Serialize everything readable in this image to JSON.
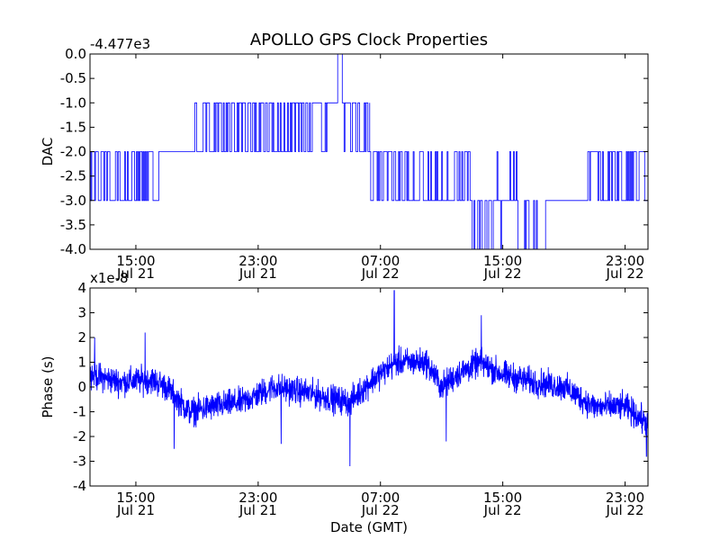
{
  "chart_data": {
    "type": "line",
    "title": "APOLLO GPS Clock Properties",
    "x_range_hours": [
      12.0,
      48.5
    ],
    "x_ticks": [
      {
        "hour": 15,
        "time": "15:00",
        "date": "Jul 21"
      },
      {
        "hour": 23,
        "time": "23:00",
        "date": "Jul 21"
      },
      {
        "hour": 31,
        "time": "07:00",
        "date": "Jul 22"
      },
      {
        "hour": 39,
        "time": "15:00",
        "date": "Jul 22"
      },
      {
        "hour": 47,
        "time": "23:00",
        "date": "Jul 22"
      }
    ],
    "xlabel": "Date (GMT)",
    "line_color": "#0000ff",
    "panels": [
      {
        "id": "dac",
        "ylabel": "DAC",
        "offset_label": "-4.477e3",
        "ylim": [
          -4.0,
          0.0
        ],
        "ytick_labels": [
          "0.0",
          "-0.5",
          "-1.0",
          "-1.5",
          "-2.0",
          "-2.5",
          "-3.0",
          "-3.5",
          "-4.0"
        ],
        "series_type": "step",
        "levels": [
          {
            "start": 12.0,
            "end": 13.3,
            "base": -2,
            "alt": [
              -3
            ],
            "density": 0.35
          },
          {
            "start": 13.3,
            "end": 16.5,
            "base": -2,
            "alt": [
              -3
            ],
            "density": 0.55
          },
          {
            "start": 16.5,
            "end": 18.5,
            "base": -2,
            "alt": [],
            "density": 0.0
          },
          {
            "start": 18.5,
            "end": 21.5,
            "base": -2,
            "alt": [
              -1
            ],
            "density": 0.45
          },
          {
            "start": 21.5,
            "end": 24.5,
            "base": -2,
            "alt": [
              -1
            ],
            "density": 0.6
          },
          {
            "start": 24.5,
            "end": 27.5,
            "base": -1,
            "alt": [
              -2
            ],
            "density": 0.55
          },
          {
            "start": 27.5,
            "end": 28.2,
            "base": -1,
            "alt": [],
            "density": 0.0
          },
          {
            "start": 28.2,
            "end": 28.5,
            "base": 0,
            "alt": [],
            "density": 0.0
          },
          {
            "start": 28.5,
            "end": 30.3,
            "base": -1,
            "alt": [
              -2
            ],
            "density": 0.35
          },
          {
            "start": 30.3,
            "end": 31.7,
            "base": -2,
            "alt": [
              -3
            ],
            "density": 0.25
          },
          {
            "start": 31.7,
            "end": 37.0,
            "base": -2,
            "alt": [
              -3
            ],
            "density": 0.6
          },
          {
            "start": 37.0,
            "end": 38.5,
            "base": -3,
            "alt": [
              -4
            ],
            "density": 0.6
          },
          {
            "start": 38.5,
            "end": 40.0,
            "base": -3,
            "alt": [
              -4,
              -2
            ],
            "density": 0.3
          },
          {
            "start": 40.0,
            "end": 41.8,
            "base": -3,
            "alt": [
              -4
            ],
            "density": 0.6
          },
          {
            "start": 41.8,
            "end": 44.5,
            "base": -3,
            "alt": [],
            "density": 0.0
          },
          {
            "start": 44.5,
            "end": 48.5,
            "base": -2,
            "alt": [
              -3
            ],
            "density": 0.45
          }
        ]
      },
      {
        "id": "phase",
        "ylabel": "Phase (s)",
        "offset_label": "x1e-8",
        "ylim": [
          -4,
          4
        ],
        "ytick_labels": [
          "4",
          "3",
          "2",
          "1",
          "0",
          "-1",
          "-2",
          "-3",
          "-4"
        ],
        "series_type": "noise",
        "trend": [
          {
            "hour": 12.0,
            "value": 0.5
          },
          {
            "hour": 14.0,
            "value": 0.2
          },
          {
            "hour": 16.0,
            "value": 0.3
          },
          {
            "hour": 17.0,
            "value": 0.0
          },
          {
            "hour": 18.5,
            "value": -1.0
          },
          {
            "hour": 20.0,
            "value": -0.8
          },
          {
            "hour": 22.0,
            "value": -0.6
          },
          {
            "hour": 24.0,
            "value": 0.0
          },
          {
            "hour": 26.0,
            "value": -0.2
          },
          {
            "hour": 28.0,
            "value": -0.5
          },
          {
            "hour": 29.0,
            "value": -0.6
          },
          {
            "hour": 30.5,
            "value": 0.3
          },
          {
            "hour": 32.0,
            "value": 1.0
          },
          {
            "hour": 34.0,
            "value": 1.0
          },
          {
            "hour": 35.0,
            "value": 0.0
          },
          {
            "hour": 36.0,
            "value": 0.5
          },
          {
            "hour": 37.5,
            "value": 1.0
          },
          {
            "hour": 39.0,
            "value": 0.5
          },
          {
            "hour": 41.0,
            "value": 0.2
          },
          {
            "hour": 43.0,
            "value": 0.0
          },
          {
            "hour": 45.0,
            "value": -0.8
          },
          {
            "hour": 47.0,
            "value": -0.8
          },
          {
            "hour": 48.5,
            "value": -1.5
          }
        ],
        "spikes": [
          {
            "hour": 12.3,
            "value": 2.0
          },
          {
            "hour": 15.6,
            "value": 2.2
          },
          {
            "hour": 17.5,
            "value": -2.5
          },
          {
            "hour": 24.5,
            "value": -2.3
          },
          {
            "hour": 29.0,
            "value": -3.2
          },
          {
            "hour": 31.9,
            "value": 3.9
          },
          {
            "hour": 35.3,
            "value": -2.2
          },
          {
            "hour": 37.6,
            "value": 2.9
          },
          {
            "hour": 48.4,
            "value": -2.8
          }
        ],
        "noise_amplitude": 0.55
      }
    ]
  }
}
